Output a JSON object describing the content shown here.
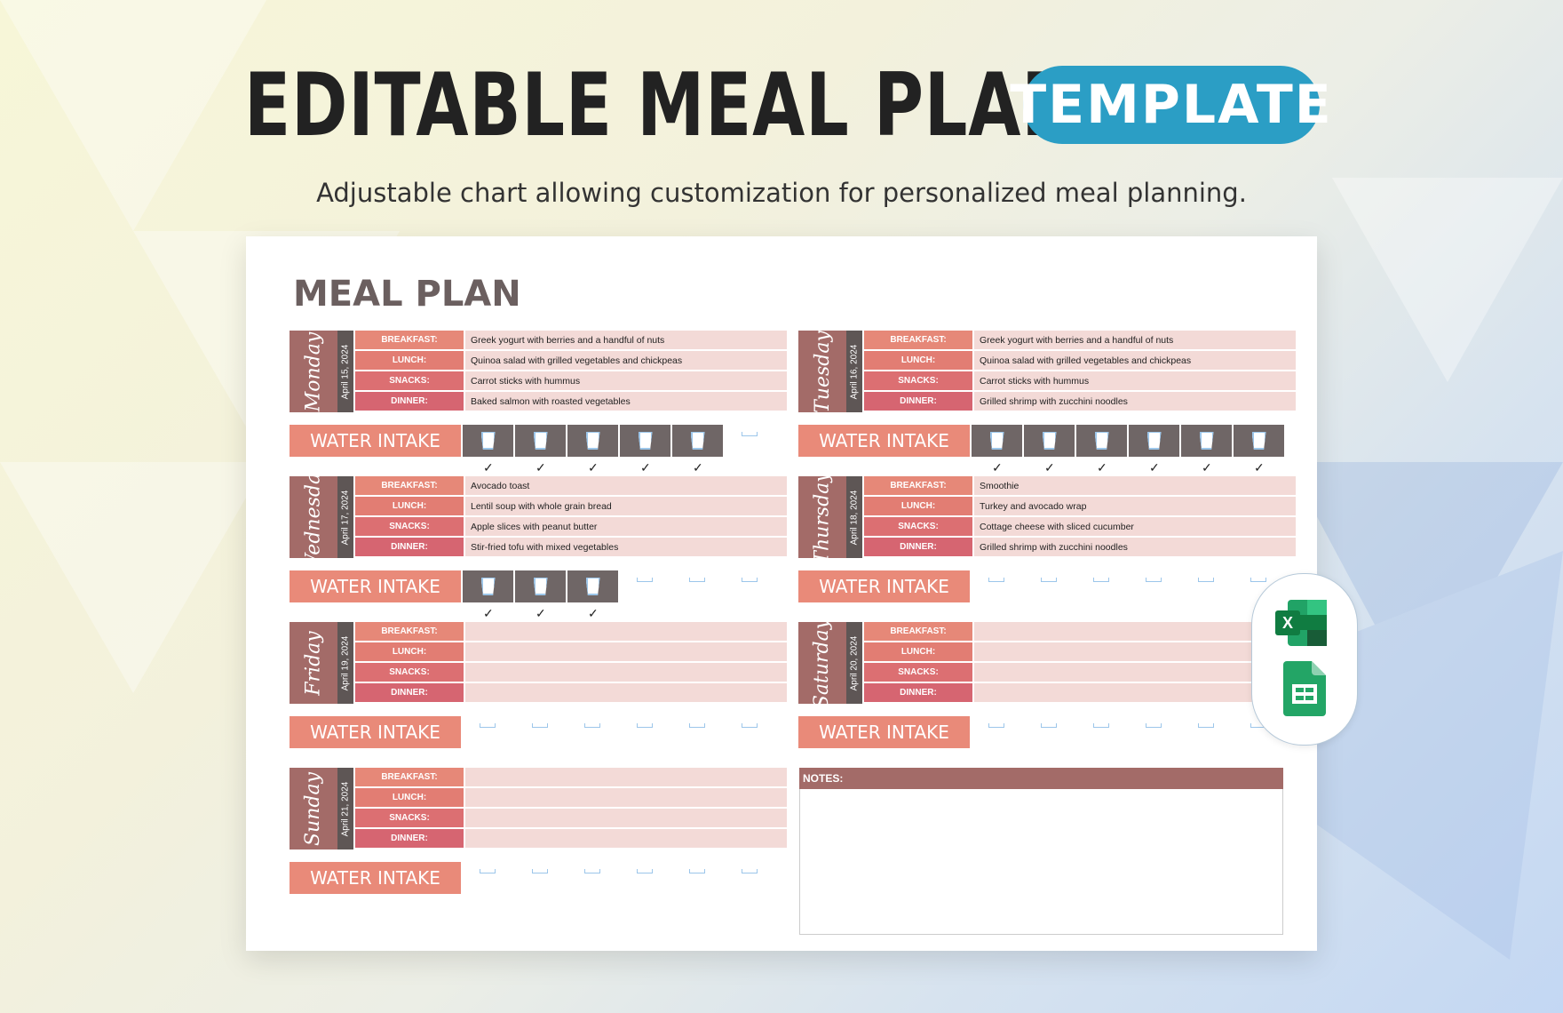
{
  "header": {
    "title": "EDITABLE MEAL PLAN",
    "badge": "TEMPLATE",
    "subtitle": "Adjustable chart allowing customization for personalized meal planning."
  },
  "sheet": {
    "title": "MEAL PLAN",
    "water_label": "WATER INTAKE",
    "notes_label": "NOTES:"
  },
  "meal_labels": [
    "BREAKFAST:",
    "LUNCH:",
    "SNACKS:",
    "DINNER:"
  ],
  "check_mark": "✓",
  "colors": {
    "label_1": "#e68878",
    "label_2": "#e27d73",
    "label_3": "#dc6f72",
    "label_4": "#d66571",
    "accent": "#2b9ec5",
    "day_block": "#a36b68"
  },
  "days": [
    {
      "name": "Monday",
      "date": "April 15, 2024",
      "meals": [
        "Greek yogurt with berries and a handful of nuts",
        "Quinoa salad with grilled vegetables and chickpeas",
        "Carrot sticks with hummus",
        "Baked salmon with roasted vegetables"
      ],
      "glasses_filled": 5,
      "glasses_total": 6
    },
    {
      "name": "Tuesday",
      "date": "April 16, 2024",
      "meals": [
        "Greek yogurt with berries and a handful of nuts",
        "Quinoa salad with grilled vegetables and chickpeas",
        "Carrot sticks with hummus",
        "Grilled shrimp with zucchini noodles"
      ],
      "glasses_filled": 6,
      "glasses_total": 6
    },
    {
      "name": "Wednesday",
      "date": "April 17, 2024",
      "meals": [
        "Avocado toast",
        "Lentil soup with whole grain bread",
        "Apple slices with peanut butter",
        "Stir-fried tofu with mixed vegetables"
      ],
      "glasses_filled": 3,
      "glasses_total": 6
    },
    {
      "name": "Thursday",
      "date": "April 18, 2024",
      "meals": [
        "Smoothie",
        "Turkey and avocado wrap",
        "Cottage cheese with sliced cucumber",
        "Grilled shrimp with zucchini noodles"
      ],
      "glasses_filled": 0,
      "glasses_total": 6
    },
    {
      "name": "Friday",
      "date": "April 19, 2024",
      "meals": [
        "",
        "",
        "",
        ""
      ],
      "glasses_filled": 0,
      "glasses_total": 6
    },
    {
      "name": "Saturday",
      "date": "April 20, 2024",
      "meals": [
        "",
        "",
        "",
        ""
      ],
      "glasses_filled": 0,
      "glasses_total": 6
    },
    {
      "name": "Sunday",
      "date": "April 21, 2024",
      "meals": [
        "",
        "",
        "",
        ""
      ],
      "glasses_filled": 0,
      "glasses_total": 6
    }
  ],
  "apps": [
    {
      "icon": "excel-icon",
      "letter": "X"
    },
    {
      "icon": "google-sheets-icon"
    }
  ]
}
